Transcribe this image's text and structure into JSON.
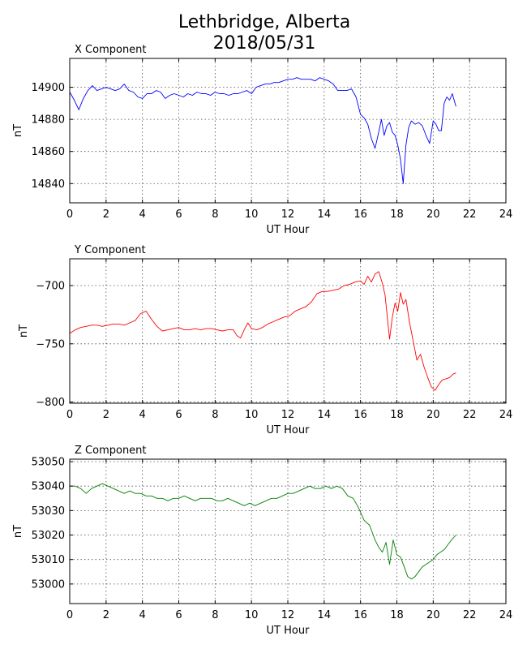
{
  "figure": {
    "title_line1": "Lethbridge, Alberta",
    "title_line2": "2018/05/31"
  },
  "chart_data": [
    {
      "type": "line",
      "title": "X Component",
      "xlabel": "UT Hour",
      "ylabel": "nT",
      "color": "#0000ff",
      "xlim": [
        0,
        24
      ],
      "ylim": [
        14828,
        14918
      ],
      "xticks": [
        0,
        2,
        4,
        6,
        8,
        10,
        12,
        14,
        16,
        18,
        20,
        22,
        24
      ],
      "yticks": [
        14840,
        14860,
        14880,
        14900
      ],
      "grid": true,
      "series": [
        {
          "x": [
            0,
            0.25,
            0.5,
            0.75,
            1,
            1.25,
            1.5,
            1.75,
            2,
            2.25,
            2.5,
            2.75,
            3,
            3.25,
            3.5,
            3.75,
            4,
            4.25,
            4.5,
            4.75,
            5,
            5.25,
            5.5,
            5.75,
            6,
            6.25,
            6.5,
            6.75,
            7,
            7.25,
            7.5,
            7.75,
            8,
            8.25,
            8.5,
            8.75,
            9,
            9.25,
            9.5,
            9.75,
            10,
            10.25,
            10.5,
            10.75,
            11,
            11.25,
            11.5,
            11.75,
            12,
            12.25,
            12.5,
            12.75,
            13,
            13.25,
            13.5,
            13.75,
            14,
            14.25,
            14.5,
            14.75,
            15,
            15.25,
            15.5,
            15.75,
            16,
            16.2,
            16.4,
            16.6,
            16.8,
            17,
            17.15,
            17.3,
            17.45,
            17.6,
            17.75,
            17.9,
            18.05,
            18.2,
            18.35,
            18.5,
            18.65,
            18.8,
            19,
            19.2,
            19.4,
            19.6,
            19.8,
            20,
            20.15,
            20.3,
            20.45,
            20.6,
            20.75,
            20.9,
            21.05,
            21.25
          ],
          "y": [
            14897,
            14892,
            14886,
            14893,
            14898,
            14901,
            14898,
            14899,
            14900,
            14899,
            14898,
            14899,
            14902,
            14898,
            14897,
            14894,
            14893,
            14896,
            14896,
            14898,
            14897,
            14893,
            14895,
            14896,
            14895,
            14894,
            14896,
            14895,
            14897,
            14896,
            14896,
            14895,
            14897,
            14896,
            14896,
            14895,
            14896,
            14896,
            14897,
            14898,
            14896,
            14900,
            14901,
            14902,
            14902,
            14903,
            14903,
            14904,
            14905,
            14905,
            14906,
            14905,
            14905,
            14905,
            14904,
            14906,
            14905,
            14904,
            14902,
            14898,
            14898,
            14898,
            14899,
            14894,
            14883,
            14881,
            14877,
            14868,
            14862,
            14872,
            14880,
            14870,
            14876,
            14878,
            14872,
            14870,
            14864,
            14855,
            14840,
            14864,
            14875,
            14879,
            14877,
            14878,
            14876,
            14870,
            14865,
            14879,
            14877,
            14873,
            14873,
            14890,
            14894,
            14892,
            14896,
            14888
          ]
        }
      ]
    },
    {
      "type": "line",
      "title": "Y Component",
      "xlabel": "UT Hour",
      "ylabel": "nT",
      "color": "#ff0000",
      "xlim": [
        0,
        24
      ],
      "ylim": [
        -801,
        -677
      ],
      "xticks": [
        0,
        2,
        4,
        6,
        8,
        10,
        12,
        14,
        16,
        18,
        20,
        22,
        24
      ],
      "yticks": [
        -700,
        -750,
        -800
      ],
      "grid": true,
      "series": [
        {
          "x": [
            0,
            0.3,
            0.6,
            0.9,
            1.2,
            1.5,
            1.8,
            2.1,
            2.4,
            2.7,
            3,
            3.3,
            3.6,
            3.9,
            4.2,
            4.5,
            4.8,
            5.1,
            5.4,
            5.7,
            6,
            6.3,
            6.6,
            6.9,
            7.2,
            7.5,
            7.8,
            8.1,
            8.4,
            8.7,
            9,
            9.2,
            9.4,
            9.6,
            9.8,
            10,
            10.3,
            10.6,
            10.9,
            11.2,
            11.5,
            11.8,
            12.1,
            12.4,
            12.7,
            13,
            13.3,
            13.6,
            13.9,
            14.2,
            14.5,
            14.8,
            15.1,
            15.4,
            15.7,
            16,
            16.2,
            16.4,
            16.6,
            16.8,
            17,
            17.2,
            17.35,
            17.5,
            17.6,
            17.75,
            17.9,
            18.05,
            18.2,
            18.35,
            18.5,
            18.7,
            18.9,
            19.1,
            19.3,
            19.5,
            19.7,
            19.9,
            20.1,
            20.3,
            20.5,
            20.7,
            20.9,
            21.1,
            21.25
          ],
          "y": [
            -741,
            -738,
            -736,
            -735,
            -734,
            -734,
            -735,
            -734,
            -733,
            -733,
            -734,
            -732,
            -730,
            -724,
            -722,
            -729,
            -735,
            -739,
            -738,
            -737,
            -736,
            -738,
            -738,
            -737,
            -738,
            -737,
            -737,
            -738,
            -739,
            -738,
            -738,
            -743,
            -745,
            -738,
            -732,
            -737,
            -738,
            -736,
            -733,
            -731,
            -729,
            -727,
            -726,
            -722,
            -720,
            -718,
            -714,
            -707,
            -705,
            -705,
            -704,
            -703,
            -700,
            -699,
            -697,
            -696,
            -699,
            -692,
            -697,
            -690,
            -688,
            -698,
            -708,
            -731,
            -746,
            -727,
            -715,
            -722,
            -706,
            -716,
            -712,
            -732,
            -748,
            -764,
            -759,
            -770,
            -779,
            -787,
            -790,
            -785,
            -781,
            -780,
            -779,
            -776,
            -775
          ]
        }
      ]
    },
    {
      "type": "line",
      "title": "Z Component",
      "xlabel": "UT Hour",
      "ylabel": "nT",
      "color": "#008000",
      "xlim": [
        0,
        24
      ],
      "ylim": [
        52992,
        53051
      ],
      "xticks": [
        0,
        2,
        4,
        6,
        8,
        10,
        12,
        14,
        16,
        18,
        20,
        22,
        24
      ],
      "yticks": [
        53000,
        53010,
        53020,
        53030,
        53040,
        53050
      ],
      "grid": true,
      "series": [
        {
          "x": [
            0,
            0.3,
            0.6,
            0.9,
            1.2,
            1.5,
            1.8,
            2.1,
            2.4,
            2.7,
            3,
            3.3,
            3.6,
            3.9,
            4.2,
            4.5,
            4.8,
            5.1,
            5.4,
            5.7,
            6,
            6.3,
            6.6,
            6.9,
            7.2,
            7.5,
            7.8,
            8.1,
            8.4,
            8.7,
            9,
            9.3,
            9.6,
            9.9,
            10.2,
            10.5,
            10.8,
            11.1,
            11.4,
            11.7,
            12,
            12.3,
            12.6,
            12.9,
            13.2,
            13.5,
            13.8,
            14.1,
            14.4,
            14.7,
            15,
            15.3,
            15.6,
            15.9,
            16.2,
            16.5,
            16.8,
            17,
            17.2,
            17.4,
            17.6,
            17.8,
            18,
            18.2,
            18.4,
            18.6,
            18.8,
            19,
            19.2,
            19.4,
            19.6,
            19.8,
            20,
            20.2,
            20.4,
            20.6,
            20.8,
            21,
            21.25
          ],
          "y": [
            53040,
            53040,
            53039,
            53037,
            53039,
            53040,
            53041,
            53040,
            53039,
            53038,
            53037,
            53038,
            53037,
            53037,
            53036,
            53036,
            53035,
            53035,
            53034,
            53035,
            53035,
            53036,
            53035,
            53034,
            53035,
            53035,
            53035,
            53034,
            53034,
            53035,
            53034,
            53033,
            53032,
            53033,
            53032,
            53033,
            53034,
            53035,
            53035,
            53036,
            53037,
            53037,
            53038,
            53039,
            53040,
            53039,
            53039,
            53040,
            53039,
            53040,
            53039,
            53036,
            53035,
            53031,
            53026,
            53024,
            53018,
            53015,
            53013,
            53017,
            53008,
            53018,
            53012,
            53011,
            53007,
            53003,
            53002,
            53003,
            53005,
            53007,
            53008,
            53009,
            53010,
            53012,
            53013,
            53014,
            53016,
            53018,
            53020
          ]
        }
      ]
    }
  ]
}
